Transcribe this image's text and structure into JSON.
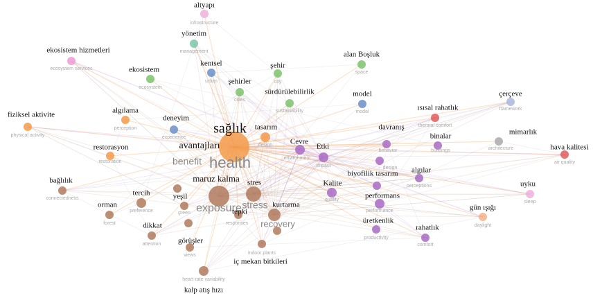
{
  "nodes": [
    {
      "label": "altyapı",
      "sublabel": "infrastructure",
      "color": "#eeb0dc"
    },
    {
      "label": "yönetim",
      "sublabel": "management",
      "color": "#7cc7a8"
    },
    {
      "label": "ekosistem hizmetleri",
      "sublabel": "ecosystem services",
      "color": "#ee9ad6"
    },
    {
      "label": "alan Boşluk",
      "sublabel": "space",
      "color": "#7dc36b"
    },
    {
      "label": "kentsel",
      "sublabel": "urban",
      "color": "#6b8fc8"
    },
    {
      "label": "şehir",
      "sublabel": "city",
      "color": "#7dc36b"
    },
    {
      "label": "ekosistem",
      "sublabel": "ecosystem",
      "color": "#7dc36b"
    },
    {
      "label": "şehirler",
      "sublabel": "cities",
      "color": "#7dc36b"
    },
    {
      "label": "sürdürülebilirlik",
      "sublabel": "sustainability",
      "color": "#7dc36b"
    },
    {
      "label": "model",
      "sublabel": "model",
      "color": "#6b8fc8"
    },
    {
      "label": "çerçeve",
      "sublabel": "framework",
      "color": "#a9b8e0"
    },
    {
      "label": "fiziksel aktivite",
      "sublabel": "physical activity",
      "color": "#f39a4a"
    },
    {
      "label": "algılama",
      "sublabel": "perception",
      "color": "#f39a4a"
    },
    {
      "label": "ısısal rahatlık",
      "sublabel": "thermal comfort",
      "color": "#e05a5a"
    },
    {
      "label": "deneyim",
      "sublabel": "experience",
      "color": "#6b8fc8"
    },
    {
      "label": "sağlık",
      "sublabel": "health",
      "color": "#f39a4a"
    },
    {
      "label": "tasarım",
      "sublabel": "design",
      "color": "#f39a4a"
    },
    {
      "label": "avantajları",
      "sublabel": "benefit",
      "color": "#f39a4a"
    },
    {
      "label": "mimarlık",
      "sublabel": "architecture",
      "color": "#aaaaaa"
    },
    {
      "label": "hava kalitesi",
      "sublabel": "air quality",
      "color": "#e05a5a"
    },
    {
      "label": "davranış",
      "sublabel": "behavior",
      "color": "#a86bc4"
    },
    {
      "label": "binalar",
      "sublabel": "buildings",
      "color": "#a86bc4"
    },
    {
      "label": "Cevre",
      "sublabel": "environment",
      "color": "#a86bc4"
    },
    {
      "label": "Etki",
      "sublabel": "impact",
      "color": "#a86bc4"
    },
    {
      "sublabel": "design",
      "color": "#a86bc4"
    },
    {
      "label": "biyofilik tasarım",
      "color": "#a86bc4"
    },
    {
      "label": "algılar",
      "sublabel": "perceptions",
      "color": "#a86bc4"
    },
    {
      "label": "maruz kalma",
      "sublabel": "exposure",
      "color": "#b07a5e"
    },
    {
      "label": "stres",
      "sublabel": "stress",
      "color": "#b07a5e"
    },
    {
      "label": "Kalite",
      "sublabel": "quality",
      "color": "#a86bc4"
    },
    {
      "label": "performans",
      "sublabel": "performance",
      "color": "#a86bc4"
    },
    {
      "label": "bağlılık",
      "sublabel": "connectedness",
      "color": "#b07a5e"
    },
    {
      "label": "uyku",
      "sublabel": "sleep",
      "color": "#eeb0dc"
    },
    {
      "label": "tercih",
      "sublabel": "preference",
      "color": "#b07a5e"
    },
    {
      "label": "yeşil",
      "sublabel": "green",
      "color": "#b07a5e"
    },
    {
      "label": "kurtarma",
      "sublabel": "recovery",
      "color": "#b07a5e"
    },
    {
      "label": "orman",
      "sublabel": "forest",
      "color": "#b07a5e"
    },
    {
      "label": "gün ışığı",
      "sublabel": "daylight",
      "color": "#f5b28a"
    },
    {
      "label": "tepki",
      "sublabel": "responses",
      "color": "#b07a5e"
    },
    {
      "label": "üretkenlik",
      "sublabel": "productivity",
      "color": "#a86bc4"
    },
    {
      "label": "dikkat",
      "sublabel": "attention",
      "color": "#b07a5e"
    },
    {
      "label": "rahatlık",
      "sublabel": "comfort",
      "color": "#a86bc4"
    },
    {
      "label": "görüşler",
      "sublabel": "views",
      "color": "#b07a5e"
    },
    {
      "label": "iç mekan bitkileri",
      "sublabel": "indoor plants",
      "color": "#b07a5e"
    },
    {
      "label": "kalp atış hızı",
      "sublabel": "heart-rate variability",
      "color": "#b07a5e"
    },
    {
      "label": "restorasyon",
      "sublabel": "restoration",
      "color": "#f39a4a"
    }
  ]
}
